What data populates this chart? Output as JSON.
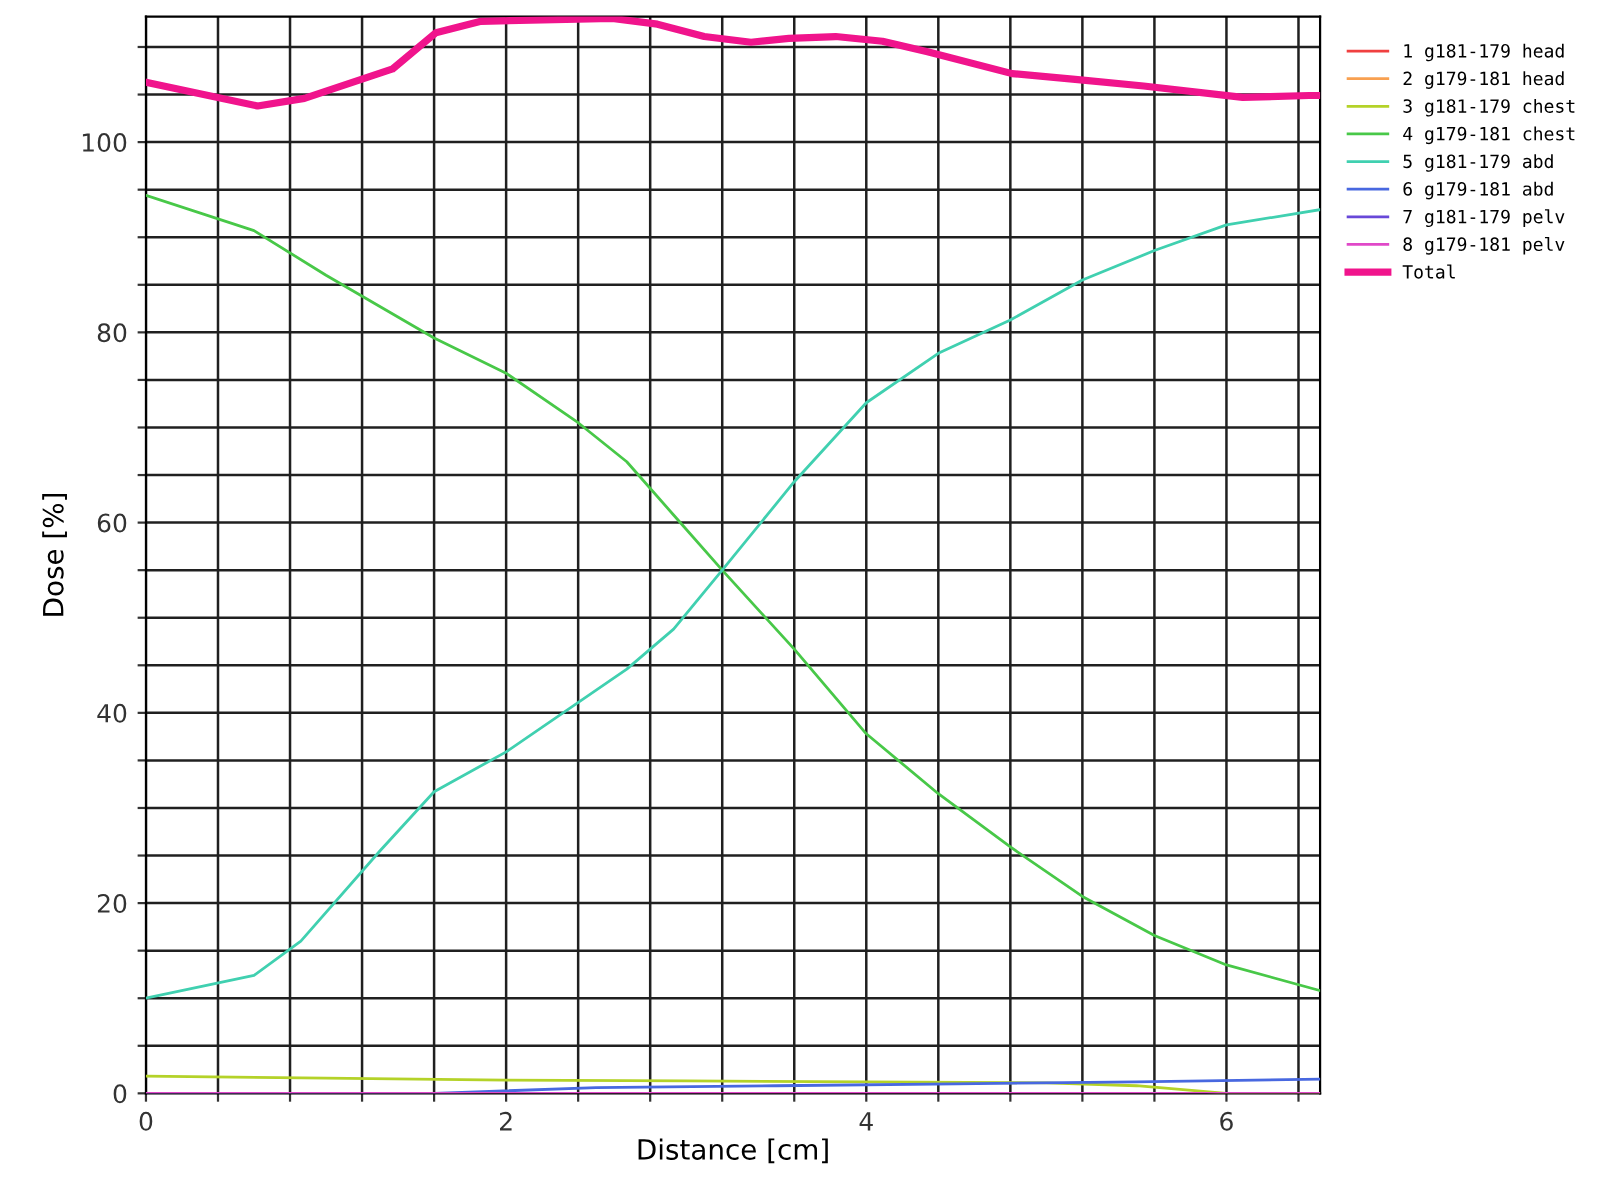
{
  "chart_data": {
    "type": "line",
    "xlabel": "Distance [cm]",
    "ylabel": "Dose [%]",
    "xlim": [
      0,
      6.52
    ],
    "ylim": [
      0,
      113.2
    ],
    "xticks": [
      0,
      {
        "value": 0.4,
        "label": null
      },
      {
        "value": 0.8,
        "label": null
      },
      {
        "value": 1.2,
        "label": null
      },
      {
        "value": 1.6,
        "label": null
      },
      2,
      {
        "value": 2.4,
        "label": null
      },
      {
        "value": 2.8,
        "label": null
      },
      {
        "value": 3.2,
        "label": null
      },
      {
        "value": 3.6,
        "label": null
      },
      4,
      {
        "value": 4.4,
        "label": null
      },
      {
        "value": 4.8,
        "label": null
      },
      {
        "value": 5.2,
        "label": null
      },
      {
        "value": 5.6,
        "label": null
      },
      6,
      {
        "value": 6.4,
        "label": null
      }
    ],
    "yticks": [
      0,
      {
        "value": 5,
        "label": null
      },
      {
        "value": 10,
        "label": null
      },
      {
        "value": 15,
        "label": null
      },
      20,
      {
        "value": 25,
        "label": null
      },
      {
        "value": 30,
        "label": null
      },
      {
        "value": 35,
        "label": null
      },
      40,
      {
        "value": 45,
        "label": null
      },
      {
        "value": 50,
        "label": null
      },
      {
        "value": 55,
        "label": null
      },
      60,
      {
        "value": 65,
        "label": null
      },
      {
        "value": 70,
        "label": null
      },
      {
        "value": 75,
        "label": null
      },
      80,
      {
        "value": 85,
        "label": null
      },
      {
        "value": 90,
        "label": null
      },
      {
        "value": 95,
        "label": null
      },
      100,
      {
        "value": 105,
        "label": null
      },
      {
        "value": 110,
        "label": null
      }
    ],
    "grid": true,
    "legend": "right",
    "marker": "none",
    "line_style": "solid",
    "series": [
      {
        "name": "1 g181-179 head",
        "color": "#f04040"
      },
      {
        "name": "2 g179-181 head",
        "color": "#f8a050"
      },
      {
        "name": "3 g181-179 chest",
        "color": "#b4d228",
        "x": [
          0,
          1,
          2,
          3,
          4,
          5,
          5.5,
          6.0,
          6.52
        ],
        "values": [
          1.8,
          1.6,
          1.4,
          1.3,
          1.2,
          1.1,
          0.8,
          0,
          0
        ]
      },
      {
        "name": "4 g179-181 chest",
        "color": "#48c848",
        "x": [
          0,
          0.6,
          1.0,
          1.6,
          2.0,
          2.4,
          2.67,
          2.93,
          3.2,
          3.6,
          4.0,
          4.4,
          4.8,
          5.2,
          5.6,
          6.0,
          6.52
        ],
        "values": [
          94.4,
          90.7,
          86,
          79.4,
          75.7,
          70.5,
          66.4,
          60.8,
          55,
          46.7,
          37.8,
          31.5,
          25.9,
          20.7,
          16.6,
          13.5,
          10.8
        ]
      },
      {
        "name": "5 g181-179 abd",
        "color": "#40d0b0",
        "x": [
          0,
          0.6,
          0.86,
          1.3,
          1.6,
          2.0,
          2.67,
          2.93,
          3.2,
          3.6,
          4.0,
          4.4,
          4.8,
          5.2,
          5.6,
          6.0,
          6.52
        ],
        "values": [
          10,
          12.4,
          16,
          25.5,
          31.7,
          35.9,
          44.6,
          48.8,
          55,
          64.3,
          72.6,
          77.8,
          81.3,
          85.5,
          88.6,
          91.3,
          92.9
        ]
      },
      {
        "name": "6 g179-181 abd",
        "color": "#4868e0",
        "x": [
          0,
          1.6,
          2.5,
          3.5,
          4.5,
          5.5,
          6.52
        ],
        "values": [
          0,
          0,
          0.6,
          0.8,
          1.0,
          1.2,
          1.5
        ]
      },
      {
        "name": "7 g181-179 pelv",
        "color": "#6848d8"
      },
      {
        "name": "8 g179-181 pelv",
        "color": "#e048c8",
        "x": [
          0,
          6.52
        ],
        "values": [
          0,
          0
        ]
      },
      {
        "name": "Total",
        "color": "#f0148c",
        "x": [
          0,
          0.62,
          0.88,
          1.37,
          1.61,
          1.86,
          2.59,
          2.84,
          3.1,
          3.36,
          3.57,
          3.83,
          4.09,
          4.34,
          4.81,
          5.16,
          5.54,
          6.09,
          6.46,
          6.52
        ],
        "values": [
          106.3,
          103.8,
          104.6,
          107.7,
          111.5,
          112.7,
          113.0,
          112.4,
          111.1,
          110.5,
          110.9,
          111.1,
          110.6,
          109.5,
          107.2,
          106.6,
          105.9,
          104.7,
          104.9,
          104.9
        ]
      }
    ]
  }
}
